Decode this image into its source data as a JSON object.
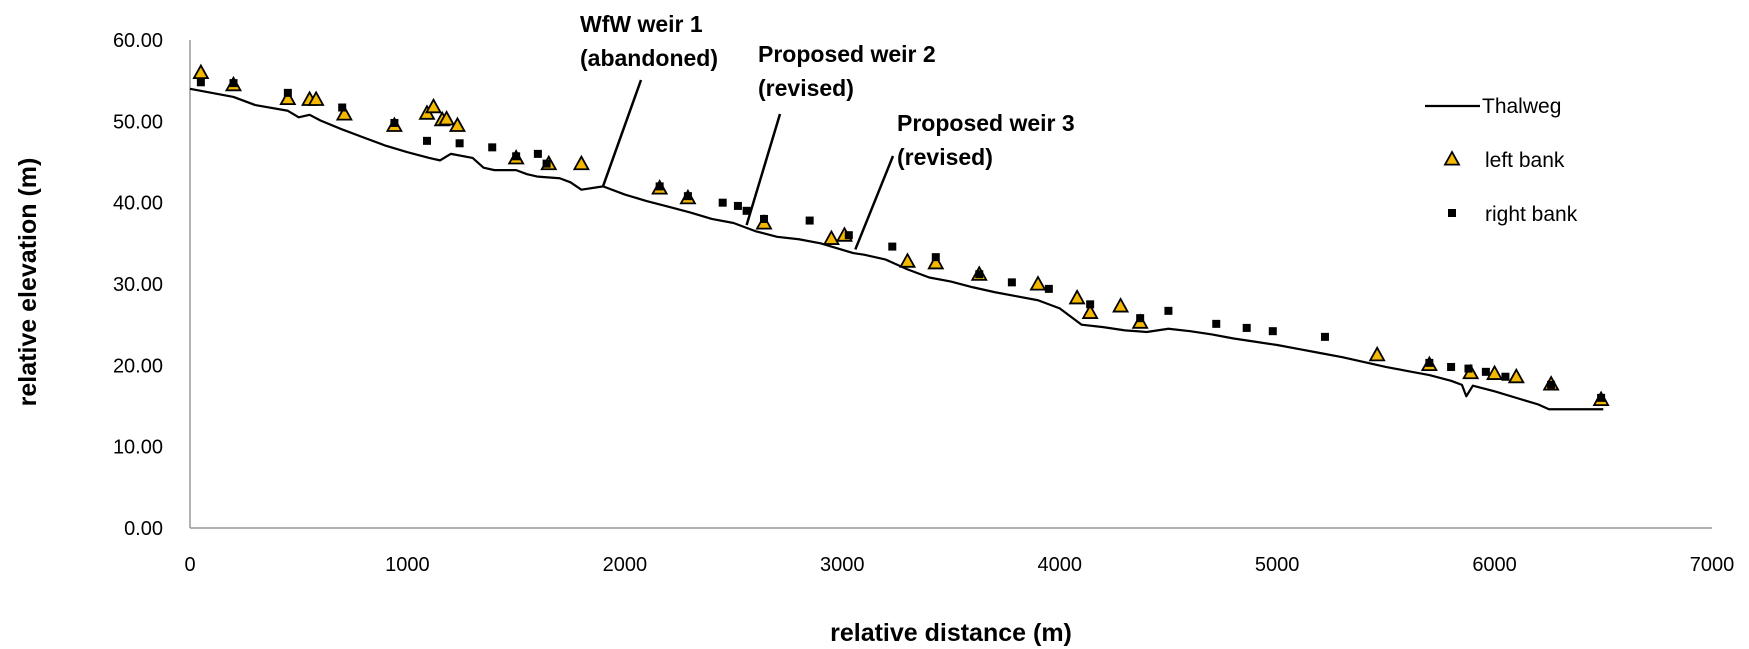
{
  "chart_data": {
    "type": "line",
    "title": "",
    "xlabel": "relative distance (m)",
    "ylabel": "relative elevation (m)",
    "xlim": [
      0,
      7000
    ],
    "ylim": [
      0,
      60
    ],
    "x_ticks": [
      "0",
      "1000",
      "2000",
      "3000",
      "4000",
      "5000",
      "6000",
      "7000"
    ],
    "y_ticks": [
      "0.00",
      "10.00",
      "20.00",
      "30.00",
      "40.00",
      "50.00",
      "60.00"
    ],
    "grid": false,
    "legend_position": "top-right",
    "colors": {
      "thalweg": "#000000",
      "left_bank": "#f5b800",
      "right_bank": "#000000"
    },
    "series": [
      {
        "name": "Thalweg",
        "style": "line",
        "x": [
          0,
          200,
          300,
          450,
          500,
          550,
          600,
          700,
          800,
          900,
          1000,
          1100,
          1150,
          1200,
          1300,
          1350,
          1400,
          1500,
          1550,
          1600,
          1700,
          1750,
          1800,
          1900,
          2000,
          2100,
          2200,
          2300,
          2400,
          2500,
          2600,
          2700,
          2800,
          2900,
          3000,
          3050,
          3100,
          3200,
          3300,
          3400,
          3500,
          3600,
          3700,
          3800,
          3900,
          4000,
          4100,
          4200,
          4300,
          4400,
          4500,
          4600,
          4700,
          4800,
          4900,
          5000,
          5100,
          5200,
          5300,
          5400,
          5500,
          5600,
          5700,
          5800,
          5850,
          5870,
          5900,
          6000,
          6100,
          6200,
          6250,
          6400,
          6500
        ],
        "y": [
          54.0,
          53.0,
          52.0,
          51.3,
          50.5,
          50.8,
          50.1,
          49.0,
          48.0,
          47.0,
          46.2,
          45.5,
          45.2,
          46.0,
          45.5,
          44.3,
          44.0,
          44.0,
          43.5,
          43.2,
          43.0,
          42.5,
          41.6,
          42.0,
          41.0,
          40.2,
          39.5,
          38.8,
          38.0,
          37.5,
          36.5,
          35.8,
          35.5,
          35.0,
          34.2,
          33.8,
          33.6,
          33.0,
          31.8,
          30.8,
          30.3,
          29.6,
          29.0,
          28.5,
          28.0,
          27.0,
          25.0,
          24.7,
          24.3,
          24.1,
          24.5,
          24.2,
          23.8,
          23.3,
          22.9,
          22.5,
          22.0,
          21.5,
          21.0,
          20.4,
          19.8,
          19.3,
          18.8,
          18.1,
          17.6,
          16.2,
          17.5,
          16.8,
          16.0,
          15.2,
          14.6,
          14.6,
          14.6
        ]
      },
      {
        "name": "left bank",
        "style": "triangle",
        "x": [
          50,
          200,
          450,
          550,
          580,
          710,
          940,
          1090,
          1120,
          1160,
          1180,
          1230,
          1500,
          1650,
          1800,
          2160,
          2290,
          2640,
          2950,
          3010,
          3300,
          3430,
          3630,
          3900,
          4080,
          4140,
          4280,
          4370,
          5460,
          5700,
          5890,
          6000,
          6100,
          6260,
          6490
        ],
        "y": [
          56.0,
          54.5,
          52.8,
          52.7,
          52.7,
          50.9,
          49.5,
          51.0,
          51.8,
          50.2,
          50.3,
          49.5,
          45.5,
          44.8,
          44.8,
          41.8,
          40.6,
          37.5,
          35.6,
          36.0,
          32.8,
          32.6,
          31.2,
          30.0,
          28.3,
          26.5,
          27.3,
          25.3,
          21.3,
          20.1,
          19.1,
          19.0,
          18.6,
          17.7,
          15.8
        ]
      },
      {
        "name": "right bank",
        "style": "square",
        "x": [
          50,
          200,
          450,
          700,
          940,
          1090,
          1240,
          1390,
          1500,
          1600,
          1640,
          2160,
          2290,
          2450,
          2520,
          2560,
          2640,
          2850,
          3030,
          3230,
          3430,
          3630,
          3780,
          3950,
          4140,
          4370,
          4500,
          4720,
          4860,
          4980,
          5220,
          5700,
          5800,
          5880,
          5960,
          6050,
          6260,
          6490
        ],
        "y": [
          54.8,
          54.7,
          53.5,
          51.7,
          49.8,
          47.6,
          47.3,
          46.8,
          45.7,
          46.0,
          44.8,
          42.0,
          40.8,
          40.0,
          39.6,
          39.0,
          38.0,
          37.8,
          36.0,
          34.6,
          33.3,
          31.2,
          30.2,
          29.4,
          27.5,
          25.8,
          26.7,
          25.1,
          24.6,
          24.2,
          23.5,
          20.3,
          19.8,
          19.6,
          19.2,
          18.6,
          17.6,
          16.0
        ]
      }
    ],
    "annotations": [
      {
        "lines": [
          "WfW weir 1",
          "(abandoned)"
        ],
        "target_x": 1900,
        "target_y": 41.8
      },
      {
        "lines": [
          "Proposed weir 2",
          "(revised)"
        ],
        "target_x": 2560,
        "target_y": 37.0
      },
      {
        "lines": [
          "Proposed weir 3",
          "(revised)"
        ],
        "target_x": 3060,
        "target_y": 34.0
      }
    ]
  }
}
